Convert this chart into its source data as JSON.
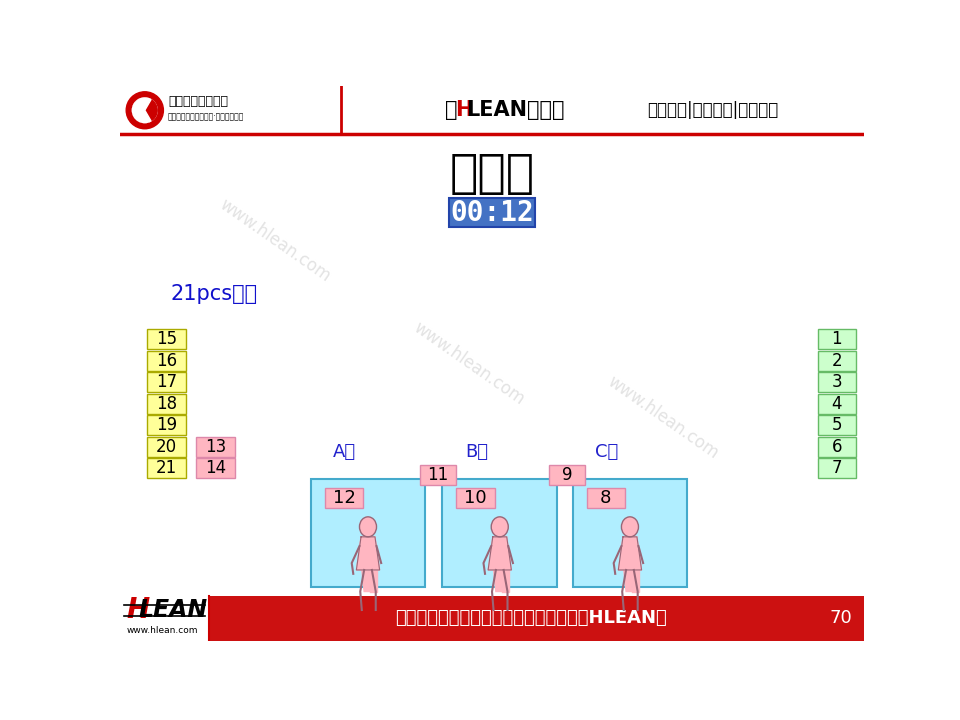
{
  "title": "单件流",
  "timer": "00:12",
  "product_label": "21pcs产品",
  "header_text1": "【HLEAN学堂】",
  "header_text2": "精益生产|智能制造|管理前沿",
  "footer_text": "做行业标杆，找精弘益；要幸福高效，用HLEAN！",
  "page_number": "70",
  "watermark": "www.hlean.com",
  "left_yellow_boxes": [
    "15",
    "16",
    "17",
    "18",
    "19",
    "20",
    "21"
  ],
  "left_pink_boxes": [
    "13",
    "14"
  ],
  "right_green_boxes": [
    "1",
    "2",
    "3",
    "4",
    "5",
    "6",
    "7"
  ],
  "station_configs": [
    {
      "label": "A站",
      "input": "11",
      "work": "12"
    },
    {
      "label": "B站",
      "input": "10",
      "work": "10"
    },
    {
      "label": "C站",
      "input": "9",
      "work": "8"
    }
  ],
  "colors": {
    "yellow_box": "#FFFF99",
    "yellow_border": "#AAAA00",
    "pink_box": "#FFB6C1",
    "pink_border": "#DD88AA",
    "green_box": "#CCFFCC",
    "green_border": "#66BB66",
    "station_bg": "#B0EEFF",
    "station_border": "#44AACC",
    "footer_bg": "#CC1111",
    "station_label_color": "#2222CC",
    "product_label_color": "#1111CC",
    "timer_bg": "#4472C4",
    "timer_border": "#2244AA"
  }
}
